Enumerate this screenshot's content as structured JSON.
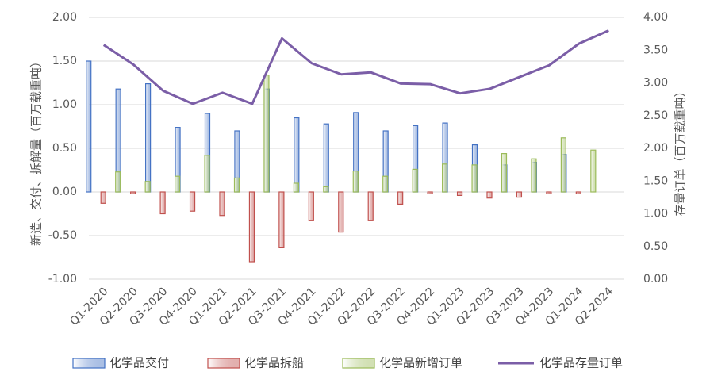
{
  "chart_data": {
    "type": "bar",
    "categories": [
      "Q1-2020",
      "Q2-2020",
      "Q3-2020",
      "Q4-2020",
      "Q1-2021",
      "Q2-2021",
      "Q3-2021",
      "Q4-2021",
      "Q1-2022",
      "Q2-2022",
      "Q3-2022",
      "Q4-2022",
      "Q1-2023",
      "Q2-2023",
      "Q3-2023",
      "Q4-2023",
      "Q1-2024",
      "Q2-2024"
    ],
    "series": [
      {
        "name": "化学品交付",
        "type": "bar",
        "axis": "left",
        "color": "#4472c4",
        "values": [
          1.5,
          1.18,
          1.24,
          0.74,
          0.9,
          0.7,
          1.18,
          0.85,
          0.78,
          0.91,
          0.7,
          0.76,
          0.79,
          0.54,
          0.31,
          0.34,
          0.43,
          null
        ]
      },
      {
        "name": "化学品拆船",
        "type": "bar",
        "axis": "left",
        "color": "#c0504d",
        "values": [
          -0.13,
          -0.02,
          -0.25,
          -0.22,
          -0.27,
          -0.8,
          -0.64,
          -0.33,
          -0.46,
          -0.33,
          -0.14,
          -0.02,
          -0.04,
          -0.07,
          -0.06,
          -0.02,
          -0.02,
          null
        ]
      },
      {
        "name": "化学品新增订单",
        "type": "bar",
        "axis": "left",
        "color": "#9bbb59",
        "values": [
          0.23,
          0.12,
          0.18,
          0.42,
          0.16,
          1.34,
          0.1,
          0.06,
          0.24,
          0.18,
          0.26,
          0.32,
          0.31,
          0.44,
          0.38,
          0.62,
          0.48,
          null
        ]
      },
      {
        "name": "化学品存量订单",
        "type": "line",
        "axis": "right",
        "color": "#7b5ea7",
        "values": [
          3.58,
          3.28,
          2.88,
          2.68,
          2.85,
          2.68,
          3.68,
          3.3,
          3.13,
          3.16,
          2.99,
          2.98,
          2.84,
          2.91,
          3.09,
          3.27,
          3.6,
          3.8
        ]
      }
    ],
    "y_left": {
      "label": "新造、交付、拆解量（百万载重吨）",
      "range": [
        -1.0,
        2.0
      ],
      "ticks": [
        "-1.00",
        "-0.50",
        "0.00",
        "0.50",
        "1.00",
        "1.50",
        "2.00"
      ]
    },
    "y_right": {
      "label": "存量订单（百万载重吨）",
      "range": [
        0.0,
        4.0
      ],
      "ticks": [
        "0.00",
        "0.50",
        "1.00",
        "1.50",
        "2.00",
        "2.50",
        "3.00",
        "3.50",
        "4.00"
      ]
    },
    "grid": true,
    "legend_position": "bottom"
  }
}
